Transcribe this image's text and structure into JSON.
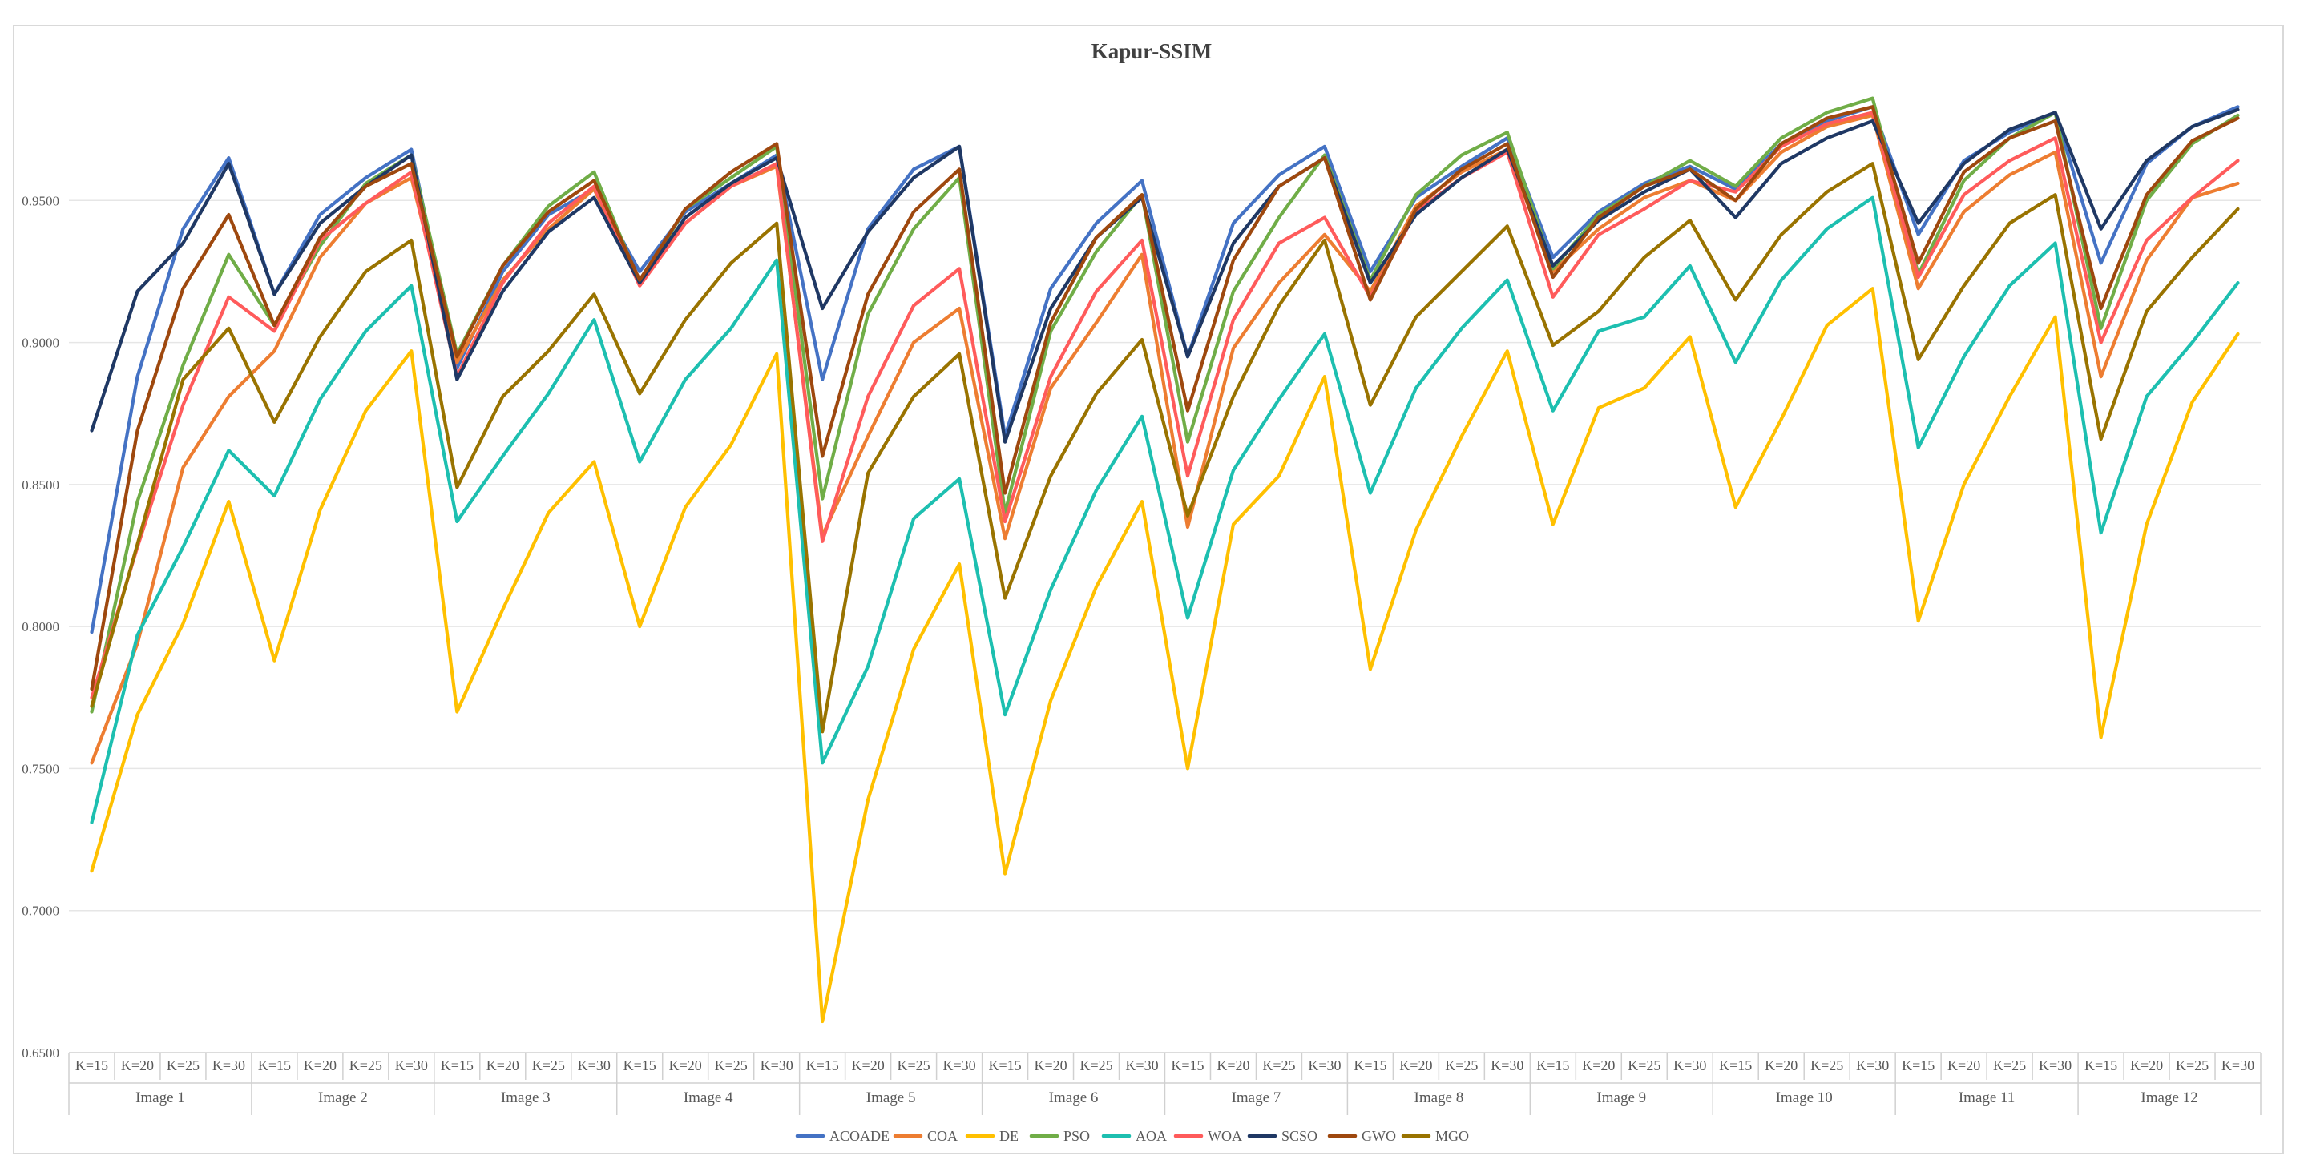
{
  "chart_data": {
    "type": "line",
    "title": "Kapur-SSIM",
    "ylim": [
      0.65,
      1.0
    ],
    "yticks": [
      "0.6500",
      "0.7000",
      "0.7500",
      "0.8000",
      "0.8500",
      "0.9000",
      "0.9500"
    ],
    "groups": [
      "Image 1",
      "Image 2",
      "Image 3",
      "Image 4",
      "Image 5",
      "Image 6",
      "Image 7",
      "Image 8",
      "Image 9",
      "Image 10",
      "Image 11",
      "Image 12"
    ],
    "subcategories": [
      "K=15",
      "K=20",
      "K=25",
      "K=30"
    ],
    "grid": true,
    "legend_position": "bottom",
    "series": [
      {
        "name": "ACOADE",
        "color": "#4472C4",
        "values": [
          0.798,
          0.888,
          0.94,
          0.965,
          0.917,
          0.945,
          0.958,
          0.968,
          0.891,
          0.925,
          0.945,
          0.954,
          0.925,
          0.946,
          0.956,
          0.966,
          0.887,
          0.94,
          0.961,
          0.969,
          0.867,
          0.919,
          0.942,
          0.957,
          0.895,
          0.942,
          0.959,
          0.969,
          0.925,
          0.951,
          0.962,
          0.972,
          0.93,
          0.946,
          0.956,
          0.962,
          0.954,
          0.97,
          0.978,
          0.983,
          0.938,
          0.964,
          0.974,
          0.981,
          0.928,
          0.963,
          0.976,
          0.983
        ]
      },
      {
        "name": "COA",
        "color": "#ED7D31",
        "values": [
          0.752,
          0.794,
          0.856,
          0.881,
          0.897,
          0.93,
          0.949,
          0.958,
          0.893,
          0.922,
          0.94,
          0.954,
          0.921,
          0.942,
          0.955,
          0.962,
          0.832,
          0.867,
          0.9,
          0.912,
          0.831,
          0.884,
          0.907,
          0.931,
          0.835,
          0.898,
          0.921,
          0.938,
          0.918,
          0.948,
          0.96,
          0.968,
          0.925,
          0.94,
          0.951,
          0.957,
          0.95,
          0.967,
          0.976,
          0.98,
          0.919,
          0.946,
          0.959,
          0.967,
          0.888,
          0.929,
          0.951,
          0.956
        ]
      },
      {
        "name": "DE",
        "color": "#FFC000",
        "values": [
          0.714,
          0.769,
          0.801,
          0.844,
          0.788,
          0.841,
          0.876,
          0.897,
          0.77,
          0.806,
          0.84,
          0.858,
          0.8,
          0.842,
          0.864,
          0.896,
          0.661,
          0.739,
          0.792,
          0.822,
          0.713,
          0.774,
          0.814,
          0.844,
          0.75,
          0.836,
          0.853,
          0.888,
          0.785,
          0.834,
          0.867,
          0.897,
          0.836,
          0.877,
          0.884,
          0.902,
          0.842,
          0.873,
          0.906,
          0.919,
          0.802,
          0.85,
          0.881,
          0.909,
          0.761,
          0.836,
          0.879,
          0.903
        ]
      },
      {
        "name": "PSO",
        "color": "#70AD47",
        "values": [
          0.77,
          0.844,
          0.892,
          0.931,
          0.906,
          0.934,
          0.956,
          0.966,
          0.896,
          0.927,
          0.948,
          0.96,
          0.921,
          0.947,
          0.958,
          0.969,
          0.845,
          0.91,
          0.94,
          0.958,
          0.84,
          0.904,
          0.932,
          0.952,
          0.865,
          0.918,
          0.944,
          0.966,
          0.922,
          0.952,
          0.966,
          0.974,
          0.926,
          0.945,
          0.955,
          0.964,
          0.955,
          0.972,
          0.981,
          0.986,
          0.924,
          0.957,
          0.972,
          0.981,
          0.905,
          0.95,
          0.97,
          0.98
        ]
      },
      {
        "name": "AOA",
        "color": "#1DBFB0",
        "values": [
          0.731,
          0.797,
          0.828,
          0.862,
          0.846,
          0.88,
          0.904,
          0.92,
          0.837,
          0.86,
          0.882,
          0.908,
          0.858,
          0.887,
          0.905,
          0.929,
          0.752,
          0.786,
          0.838,
          0.852,
          0.769,
          0.813,
          0.848,
          0.874,
          0.803,
          0.855,
          0.88,
          0.903,
          0.847,
          0.884,
          0.905,
          0.922,
          0.876,
          0.904,
          0.909,
          0.927,
          0.893,
          0.922,
          0.94,
          0.951,
          0.863,
          0.895,
          0.92,
          0.935,
          0.833,
          0.881,
          0.9,
          0.921
        ]
      },
      {
        "name": "WOA",
        "color": "#FF5B5B",
        "values": [
          0.775,
          0.828,
          0.878,
          0.916,
          0.904,
          0.936,
          0.949,
          0.96,
          0.888,
          0.921,
          0.942,
          0.955,
          0.92,
          0.942,
          0.955,
          0.963,
          0.83,
          0.881,
          0.913,
          0.926,
          0.837,
          0.888,
          0.918,
          0.936,
          0.853,
          0.908,
          0.935,
          0.944,
          0.916,
          0.946,
          0.958,
          0.967,
          0.916,
          0.938,
          0.947,
          0.957,
          0.953,
          0.969,
          0.977,
          0.981,
          0.923,
          0.952,
          0.964,
          0.972,
          0.9,
          0.936,
          0.951,
          0.964
        ]
      },
      {
        "name": "SCSO",
        "color": "#1F3864",
        "values": [
          0.869,
          0.918,
          0.935,
          0.963,
          0.917,
          0.942,
          0.955,
          0.966,
          0.887,
          0.918,
          0.939,
          0.951,
          0.921,
          0.944,
          0.956,
          0.965,
          0.912,
          0.939,
          0.958,
          0.969,
          0.865,
          0.912,
          0.937,
          0.951,
          0.895,
          0.935,
          0.955,
          0.965,
          0.921,
          0.945,
          0.958,
          0.968,
          0.927,
          0.943,
          0.953,
          0.961,
          0.944,
          0.963,
          0.972,
          0.978,
          0.942,
          0.963,
          0.975,
          0.981,
          0.94,
          0.964,
          0.976,
          0.982
        ]
      },
      {
        "name": "GWO",
        "color": "#9E480E",
        "values": [
          0.778,
          0.869,
          0.919,
          0.945,
          0.906,
          0.937,
          0.955,
          0.963,
          0.895,
          0.927,
          0.946,
          0.957,
          0.922,
          0.947,
          0.96,
          0.97,
          0.86,
          0.917,
          0.946,
          0.961,
          0.847,
          0.907,
          0.937,
          0.952,
          0.876,
          0.929,
          0.955,
          0.965,
          0.915,
          0.947,
          0.961,
          0.97,
          0.923,
          0.944,
          0.955,
          0.961,
          0.95,
          0.97,
          0.979,
          0.983,
          0.928,
          0.96,
          0.972,
          0.978,
          0.912,
          0.952,
          0.971,
          0.979
        ]
      },
      {
        "name": "MGO",
        "color": "#997300",
        "values": [
          0.772,
          0.829,
          0.887,
          0.905,
          0.872,
          0.902,
          0.925,
          0.936,
          0.849,
          0.881,
          0.897,
          0.917,
          0.882,
          0.908,
          0.928,
          0.942,
          0.763,
          0.854,
          0.881,
          0.896,
          0.81,
          0.853,
          0.882,
          0.901,
          0.839,
          0.881,
          0.913,
          0.936,
          0.878,
          0.909,
          0.925,
          0.941,
          0.899,
          0.911,
          0.93,
          0.943,
          0.915,
          0.938,
          0.953,
          0.963,
          0.894,
          0.92,
          0.942,
          0.952,
          0.866,
          0.911,
          0.93,
          0.947
        ]
      }
    ]
  }
}
